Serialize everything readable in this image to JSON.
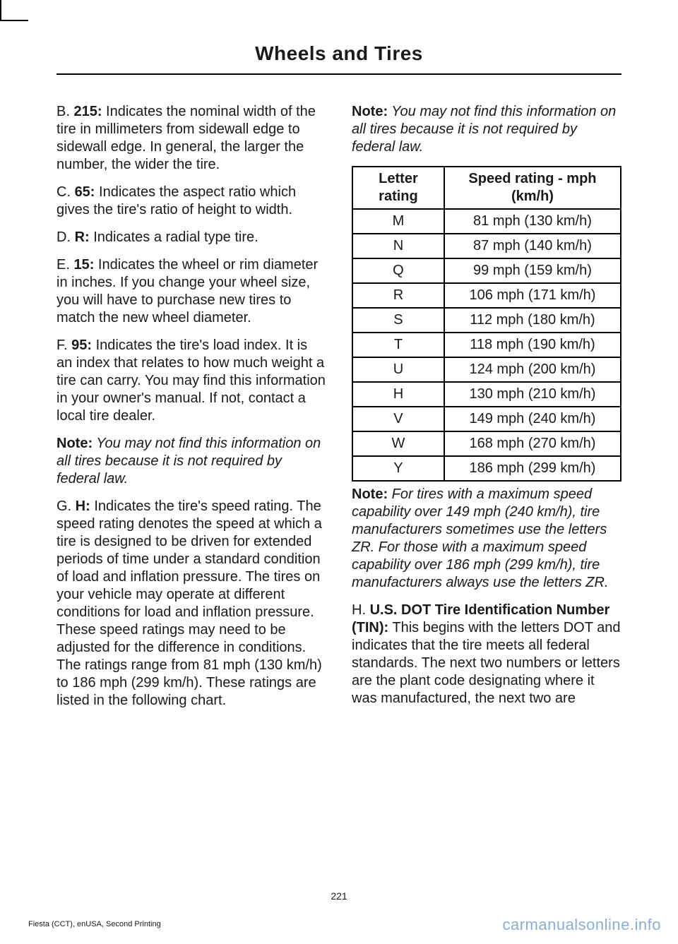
{
  "header": {
    "title": "Wheels and Tires"
  },
  "left": {
    "b": {
      "prefix": "B. ",
      "code": "215:",
      "text": " Indicates the nominal width of the tire in millimeters from sidewall edge to sidewall edge. In general, the larger the number, the wider the tire."
    },
    "c": {
      "prefix": "C. ",
      "code": "65:",
      "text": " Indicates the aspect ratio which gives the tire's ratio of height to width."
    },
    "d": {
      "prefix": "D. ",
      "code": "R:",
      "text": " Indicates a radial type tire."
    },
    "e": {
      "prefix": "E. ",
      "code": "15:",
      "text": " Indicates the wheel or rim diameter in inches. If you change your wheel size, you will have to purchase new tires to match the new wheel diameter."
    },
    "f": {
      "prefix": "F. ",
      "code": "95:",
      "text": " Indicates the tire's load index. It is an index that relates to how much weight a tire can carry. You may find this information in your owner's manual. If not, contact a local tire dealer."
    },
    "note1": {
      "label": "Note:",
      "text": " You may not find this information on all tires because it is not required by federal law."
    },
    "g": {
      "prefix": "G. ",
      "code": "H:",
      "text": " Indicates the tire's speed rating. The speed rating denotes the speed at which a tire is designed to be driven for extended periods of time under a standard condition of load and inflation pressure. The tires on your vehicle may operate at different conditions for load and inflation pressure. These speed ratings may need to be adjusted for the difference in conditions. The ratings range from 81 mph (130 km/h) to 186 mph (299 km/h). These ratings are listed in the following chart."
    }
  },
  "right": {
    "note2": {
      "label": "Note:",
      "text": " You may not find this information on all tires because it is not required by federal law."
    },
    "table": {
      "headers": [
        "Letter rating",
        "Speed rating - mph (km/h)"
      ],
      "rows": [
        [
          "M",
          "81 mph (130 km/h)"
        ],
        [
          "N",
          "87 mph (140 km/h)"
        ],
        [
          "Q",
          "99 mph (159 km/h)"
        ],
        [
          "R",
          "106 mph (171 km/h)"
        ],
        [
          "S",
          "112 mph (180 km/h)"
        ],
        [
          "T",
          "118 mph (190 km/h)"
        ],
        [
          "U",
          "124 mph (200 km/h)"
        ],
        [
          "H",
          "130 mph (210 km/h)"
        ],
        [
          "V",
          "149 mph (240 km/h)"
        ],
        [
          "W",
          "168 mph (270 km/h)"
        ],
        [
          "Y",
          "186 mph (299 km/h)"
        ]
      ]
    },
    "note3": {
      "label": "Note:",
      "text": " For tires with a maximum speed capability over 149 mph (240 km/h), tire manufacturers sometimes use the letters ZR. For those with a maximum speed capability over 186 mph (299 km/h), tire manufacturers always use the letters ZR."
    },
    "h": {
      "prefix": "H. ",
      "code": "U.S. DOT Tire Identification Number (TIN):",
      "text": " This begins with the letters DOT and indicates that the tire meets all federal standards. The next two numbers or letters are the plant code designating where it was manufactured, the next two are"
    }
  },
  "footer": {
    "page": "221",
    "left": "Fiesta (CCT), enUSA, Second Printing",
    "watermark": "carmanualsonline.info"
  }
}
